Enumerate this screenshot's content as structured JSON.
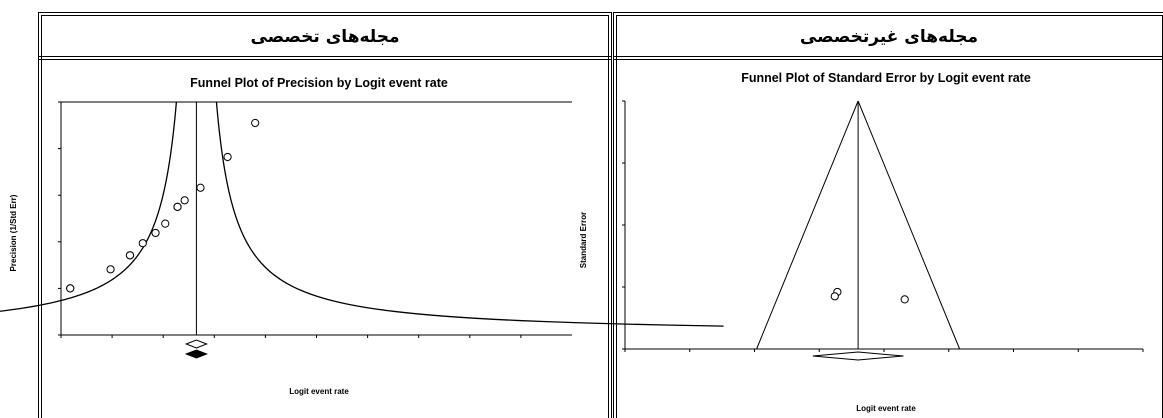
{
  "headers": {
    "left": "مجله‌های تخصصی",
    "right": "مجله‌های غیرتخصصی"
  },
  "chart_data": [
    {
      "type": "scatter",
      "title": "Funnel Plot of Precision by Logit event rate",
      "xlabel": "Logit event rate",
      "ylabel": "Precision (1/Std Err)",
      "xlim": [
        -5,
        5
      ],
      "ylim": [
        0,
        5
      ],
      "x_ticks": [
        "-5",
        "-4",
        "-3",
        "-2",
        "-1",
        "0",
        "1",
        "2",
        "3",
        "4"
      ],
      "x_tick_values": [
        -5,
        -4,
        -3,
        -2,
        -1,
        0,
        1,
        2,
        3,
        4
      ],
      "y_ticks": [
        "0",
        "1",
        "2",
        "3",
        "4",
        "5"
      ],
      "y_tick_values": [
        0,
        1,
        2,
        3,
        4,
        5
      ],
      "pooled_estimate": -2.35,
      "points": [
        {
          "x": -4.82,
          "y": 1.0
        },
        {
          "x": -4.82,
          "y": 1.0
        },
        {
          "x": -4.03,
          "y": 1.41
        },
        {
          "x": -3.65,
          "y": 1.71
        },
        {
          "x": -3.65,
          "y": 1.71
        },
        {
          "x": -3.4,
          "y": 1.97
        },
        {
          "x": -3.15,
          "y": 2.19
        },
        {
          "x": -2.96,
          "y": 2.39
        },
        {
          "x": -2.72,
          "y": 2.75
        },
        {
          "x": -2.72,
          "y": 2.75
        },
        {
          "x": -2.58,
          "y": 2.89
        },
        {
          "x": -2.27,
          "y": 3.16
        },
        {
          "x": -1.74,
          "y": 3.82
        },
        {
          "x": -1.2,
          "y": 4.55
        }
      ],
      "summary_diamonds": [
        {
          "center": -2.35,
          "half_width": 0.2,
          "filled": false
        },
        {
          "center": -2.35,
          "half_width": 0.2,
          "filled": true
        }
      ]
    },
    {
      "type": "scatter",
      "title": "Funnel Plot of Standard Error by Logit event rate",
      "xlabel": "Logit event rate",
      "ylabel": "Standard Error",
      "xlim": [
        -2.0,
        2.0
      ],
      "ylim": [
        0.0,
        0.4
      ],
      "y_inverted": true,
      "x_ticks": [
        "-2.0",
        "-1.5",
        "-1.0",
        "-0.5",
        "0.0",
        "0.5",
        "1.0",
        "1.5",
        "2.0"
      ],
      "x_tick_values": [
        -2.0,
        -1.5,
        -1.0,
        -0.5,
        0.0,
        0.5,
        1.0,
        1.5,
        2.0
      ],
      "y_ticks": [
        "0.0",
        "0.1",
        "0.2",
        "0.3",
        "0.4"
      ],
      "y_tick_values": [
        0.0,
        0.1,
        0.2,
        0.3,
        0.4
      ],
      "pooled_estimate": -0.2,
      "points": [
        {
          "x": -0.36,
          "y": 0.308
        },
        {
          "x": -0.38,
          "y": 0.315
        },
        {
          "x": 0.16,
          "y": 0.32
        }
      ],
      "summary_diamonds": [
        {
          "center": -0.2,
          "half_width": 0.35,
          "filled": false
        }
      ]
    }
  ]
}
